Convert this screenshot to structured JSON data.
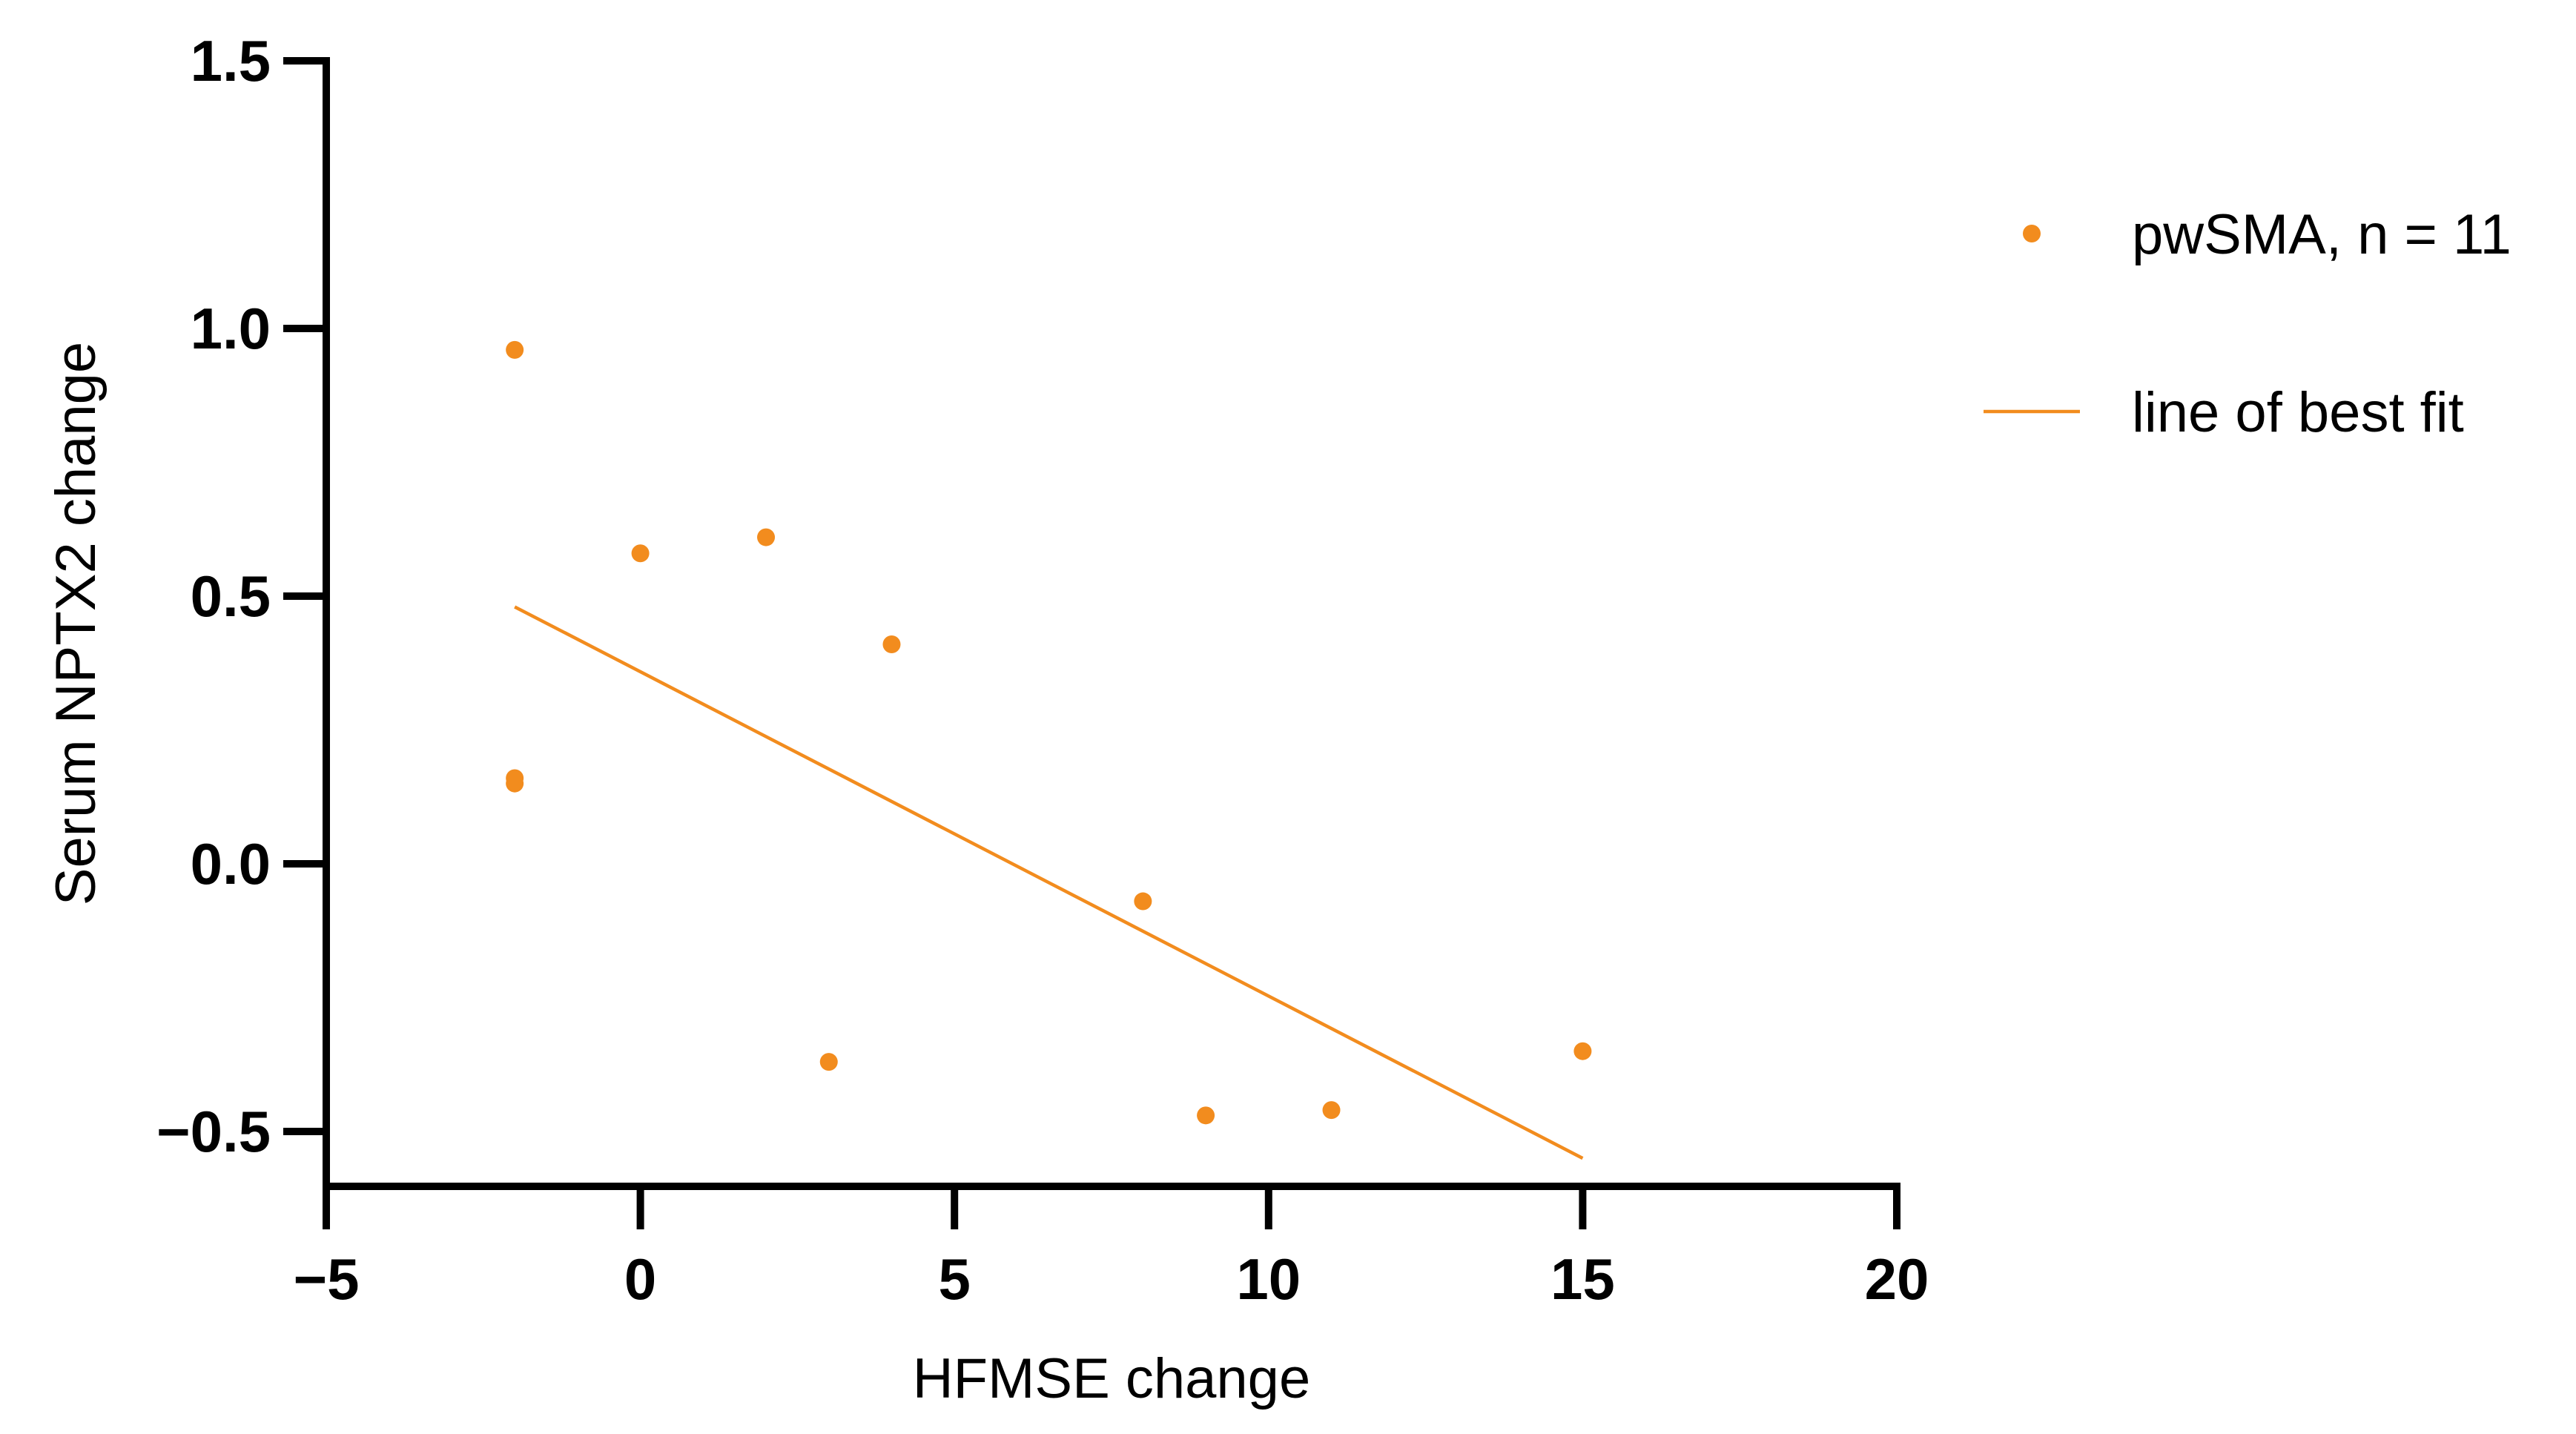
{
  "chart_data": {
    "type": "scatter",
    "title": "",
    "xlabel": "HFMSE change",
    "ylabel": "Serum NPTX2 change",
    "xlim": [
      -5,
      20
    ],
    "ylim": [
      -0.6,
      1.5
    ],
    "x_ticks": [
      -5,
      0,
      5,
      10,
      15,
      20
    ],
    "x_tick_labels": [
      "−5",
      "0",
      "5",
      "10",
      "15",
      "20"
    ],
    "y_ticks": [
      -0.5,
      0.0,
      0.5,
      1.0,
      1.5
    ],
    "y_tick_labels": [
      "−0.5",
      "0.0",
      "0.5",
      "1.0",
      "1.5"
    ],
    "grid": false,
    "legend_position": "top-right, outside plot",
    "colors": {
      "series": "#F28C1E",
      "axis": "#000000"
    },
    "series": [
      {
        "name": "pwSMA, n = 11",
        "kind": "scatter",
        "points": [
          {
            "x": -2,
            "y": 0.96
          },
          {
            "x": -2,
            "y": 0.16
          },
          {
            "x": -2,
            "y": 0.15
          },
          {
            "x": 0,
            "y": 0.58
          },
          {
            "x": 2,
            "y": 0.61
          },
          {
            "x": 3,
            "y": -0.37
          },
          {
            "x": 4,
            "y": 0.41
          },
          {
            "x": 8,
            "y": -0.07
          },
          {
            "x": 9,
            "y": -0.47
          },
          {
            "x": 11,
            "y": -0.46
          },
          {
            "x": 15,
            "y": -0.35
          }
        ]
      },
      {
        "name": "line of best fit",
        "kind": "line",
        "points": [
          {
            "x": -2,
            "y": 0.48
          },
          {
            "x": 15,
            "y": -0.55
          }
        ]
      }
    ]
  }
}
